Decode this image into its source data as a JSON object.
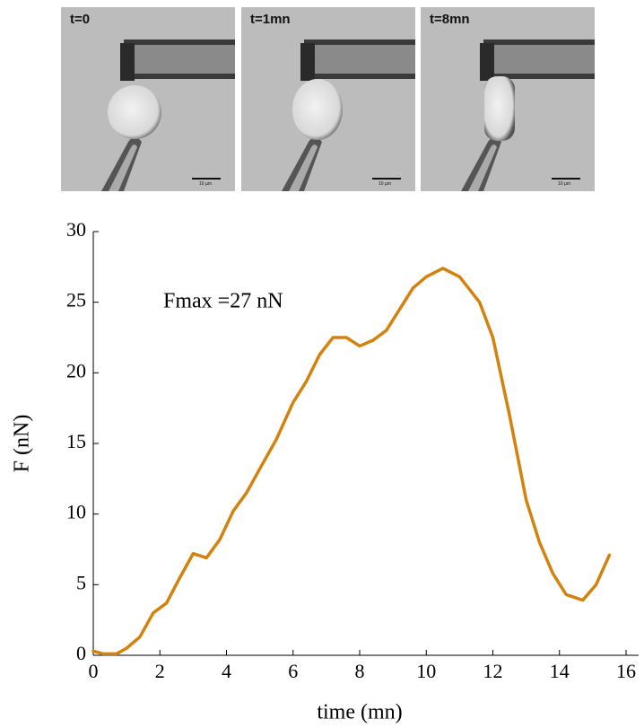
{
  "images": [
    {
      "label": "t=0",
      "scale_bar": "10 µm"
    },
    {
      "label": "t=1mn",
      "scale_bar": "10 µm"
    },
    {
      "label": "t=8mn",
      "scale_bar": "10 µm"
    }
  ],
  "chart_data": {
    "type": "line",
    "x_label": "time (mn)",
    "y_label": "F (nN)",
    "annotation": "Fmax =27 nN",
    "xlim": [
      0,
      16
    ],
    "xticks": [
      0,
      2,
      4,
      6,
      8,
      10,
      12,
      14,
      16
    ],
    "ylim": [
      0,
      30
    ],
    "yticks": [
      0,
      5,
      10,
      15,
      20,
      25,
      30
    ],
    "x": [
      0,
      0.3,
      0.7,
      1,
      1.4,
      1.8,
      2.2,
      2.6,
      3,
      3.4,
      3.8,
      4.2,
      4.6,
      5,
      5.5,
      6,
      6.4,
      6.8,
      7.2,
      7.6,
      8,
      8.4,
      8.8,
      9.2,
      9.6,
      10,
      10.5,
      11,
      11.6,
      12,
      12.5,
      13,
      13.4,
      13.8,
      14.2,
      14.7,
      15.1,
      15.5
    ],
    "series": [
      {
        "name": "F",
        "color": "#d4820e",
        "values": [
          0.3,
          0.1,
          0.1,
          0.5,
          1.3,
          3,
          3.7,
          5.5,
          7.2,
          6.9,
          8.2,
          10.2,
          11.5,
          13.2,
          15.3,
          17.9,
          19.4,
          21.3,
          22.5,
          22.5,
          21.9,
          22.3,
          23,
          24.5,
          26,
          26.8,
          27.4,
          26.8,
          25,
          22.5,
          17,
          11,
          8,
          5.8,
          4.3,
          3.9,
          5,
          7.1
        ]
      }
    ]
  }
}
